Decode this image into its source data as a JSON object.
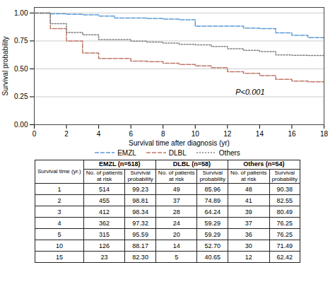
{
  "chart_data": {
    "type": "step",
    "xlabel": "Survival time after diagnosis (yr)",
    "ylabel": "Survival probability",
    "x": [
      0,
      1,
      2,
      3,
      4,
      5,
      6,
      7,
      8,
      9,
      10,
      11,
      12,
      13,
      14,
      15,
      16,
      17,
      18
    ],
    "series": [
      {
        "name": "EMZL",
        "color": "#5b9bd5",
        "line_style": "dashed",
        "values": [
          1.0,
          0.9923,
          0.9881,
          0.9834,
          0.9732,
          0.9559,
          0.955,
          0.95,
          0.945,
          0.94,
          0.8817,
          0.882,
          0.882,
          0.865,
          0.86,
          0.823,
          0.8,
          0.78,
          0.777
        ]
      },
      {
        "name": "DLBL",
        "color": "#c0786a",
        "line_style": "dashed",
        "values": [
          1.0,
          0.8596,
          0.7489,
          0.6424,
          0.5929,
          0.5929,
          0.57,
          0.565,
          0.55,
          0.54,
          0.527,
          0.51,
          0.475,
          0.46,
          0.44,
          0.4065,
          0.39,
          0.385,
          0.38
        ]
      },
      {
        "name": "Others",
        "color": "#808080",
        "line_style": "dotted",
        "values": [
          1.0,
          0.9038,
          0.8255,
          0.8049,
          0.7625,
          0.7625,
          0.748,
          0.74,
          0.73,
          0.72,
          0.7149,
          0.7,
          0.68,
          0.665,
          0.655,
          0.6242,
          0.622,
          0.62,
          0.62
        ]
      }
    ],
    "xlim": [
      0,
      18
    ],
    "ylim": [
      0.0,
      1.05
    ],
    "xticks": [
      0,
      2,
      4,
      6,
      8,
      10,
      12,
      14,
      16,
      18
    ],
    "yticks": [
      {
        "value": 0.0,
        "label": "0.00"
      },
      {
        "value": 0.25,
        "label": "0.25"
      },
      {
        "value": 0.5,
        "label": "0.50"
      },
      {
        "value": 0.75,
        "label": "0.75"
      },
      {
        "value": 1.0,
        "label": "1.00"
      }
    ],
    "grid": true,
    "legend": "lower center",
    "annotations": [
      {
        "text": "P<0.001",
        "x": 12.5,
        "y": 0.27
      }
    ],
    "table": {
      "col_groups": [
        "EMZL (n=518)",
        "DLBL (n=58)",
        "Others (n=54)"
      ],
      "col_headers": [
        "No. of patients\nat risk",
        "Survival\nprobability"
      ],
      "row_label_header": "Survival time (yr.)",
      "row_labels": [
        "1",
        "2",
        "3",
        "4",
        "5",
        "10",
        "15"
      ],
      "cells": [
        [
          "514",
          "99.23",
          "49",
          "85.96",
          "48",
          "90.38"
        ],
        [
          "455",
          "98.81",
          "37",
          "74.89",
          "41",
          "82.55"
        ],
        [
          "412",
          "98.34",
          "28",
          "64.24",
          "39",
          "80.49"
        ],
        [
          "362",
          "97.32",
          "24",
          "59.29",
          "37",
          "76.25"
        ],
        [
          "315",
          "95.59",
          "20",
          "59.29",
          "36",
          "76.25"
        ],
        [
          "126",
          "88.17",
          "14",
          "52.70",
          "30",
          "71.49"
        ],
        [
          "23",
          "82.30",
          "5",
          "40.65",
          "12",
          "62.42"
        ]
      ]
    }
  }
}
